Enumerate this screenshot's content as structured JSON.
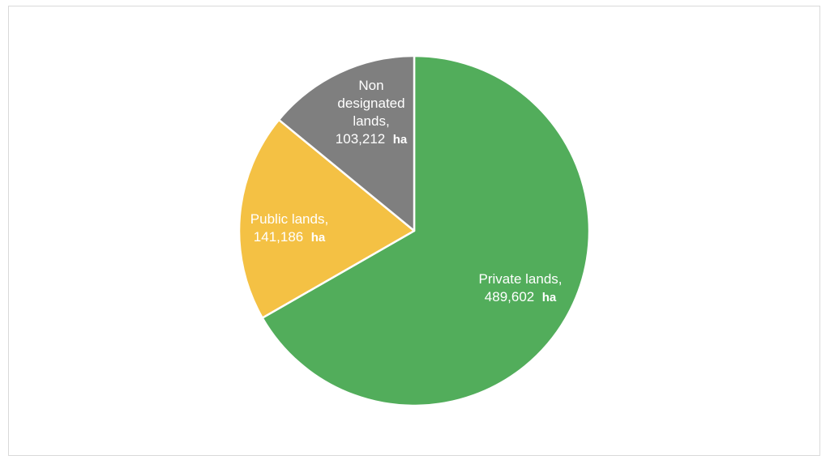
{
  "chart_data": {
    "type": "pie",
    "title": "",
    "start_angle_deg": 0,
    "direction": "clockwise",
    "slice_border_color": "#ffffff",
    "slices": [
      {
        "name": "Private lands",
        "value": 489602,
        "label_lines": [
          "Private lands,"
        ],
        "value_text": "489,602",
        "unit": "ha",
        "color": "#52ad5b"
      },
      {
        "name": "Public lands",
        "value": 141186,
        "label_lines": [
          "Public lands,"
        ],
        "value_text": "141,186",
        "unit": "ha",
        "color": "#f4c144"
      },
      {
        "name": "Non designated lands",
        "value": 103212,
        "label_lines": [
          "Non",
          "designated",
          "lands,"
        ],
        "value_text": "103,212",
        "unit": "ha",
        "color": "#7f7f7f"
      }
    ]
  }
}
